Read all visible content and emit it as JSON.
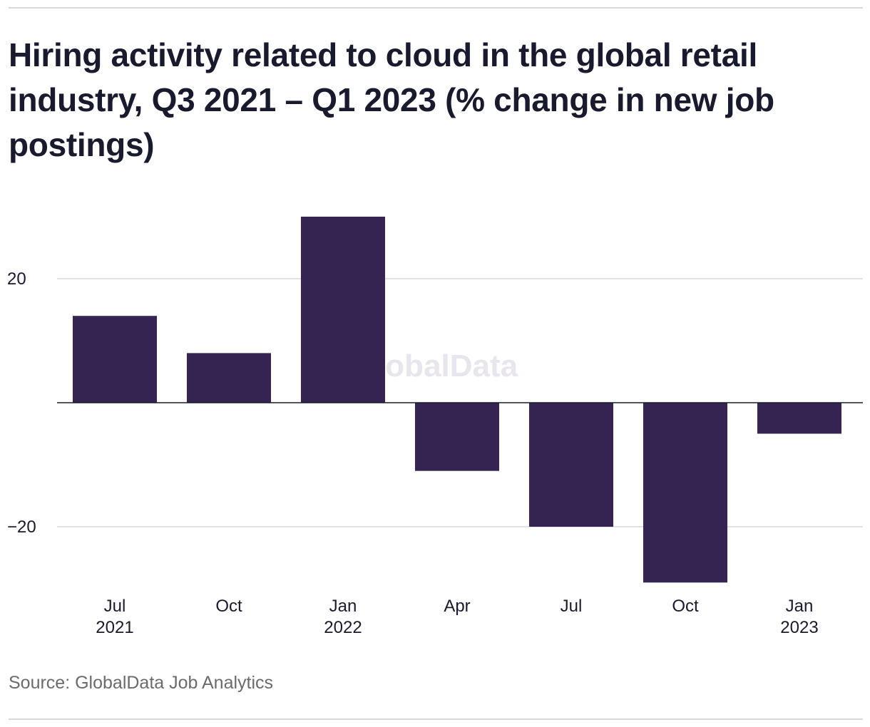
{
  "title": "Hiring activity related to cloud in the global retail industry, Q3 2021 – Q1 2023 (% change in new job postings)",
  "source": "Source: GlobalData Job Analytics",
  "watermark": "GlobalData",
  "colors": {
    "bar": "#352451",
    "grid": "#d9d9d9",
    "zero_line": "#1a1a2e",
    "text": "#1a1a2e",
    "source_text": "#6b6b6b"
  },
  "chart_data": {
    "type": "bar",
    "title": "Hiring activity related to cloud in the global retail industry, Q3 2021 – Q1 2023 (% change in new job postings)",
    "categories": [
      "Jul 2021",
      "Oct",
      "Jan 2022",
      "Apr",
      "Jul",
      "Oct",
      "Jan 2023"
    ],
    "tick_labels": [
      [
        "Jul",
        "2021"
      ],
      [
        "Oct"
      ],
      [
        "Jan",
        "2022"
      ],
      [
        "Apr"
      ],
      [
        "Jul"
      ],
      [
        "Oct"
      ],
      [
        "Jan",
        "2023"
      ]
    ],
    "values": [
      14,
      8,
      30,
      -11,
      -20,
      -29,
      -5
    ],
    "y_ticks": [
      20,
      -20
    ],
    "y_tick_labels": [
      "20",
      "−20"
    ],
    "ylim": [
      -30,
      40
    ],
    "xlabel": "",
    "ylabel": "",
    "grid": true,
    "legend": "none"
  }
}
